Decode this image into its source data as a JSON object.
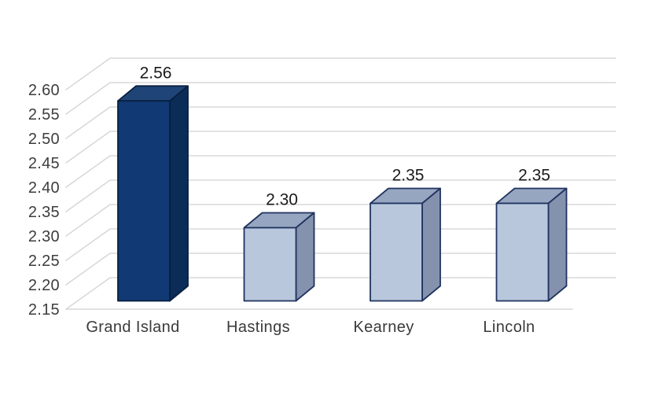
{
  "chart_data": {
    "type": "bar",
    "projection": "3d-clustered-column",
    "title": "",
    "xlabel": "",
    "ylabel": "",
    "categories": [
      "Grand Island",
      "Hastings",
      "Kearney",
      "Lincoln"
    ],
    "values": [
      2.56,
      2.3,
      2.35,
      2.35
    ],
    "data_labels": [
      "2.56",
      "2.30",
      "2.35",
      "2.35"
    ],
    "ylim": [
      2.15,
      2.6
    ],
    "ytick_step": 0.05,
    "ytick_labels": [
      "2.60",
      "2.55",
      "2.50",
      "2.45",
      "2.40",
      "2.35",
      "2.30",
      "2.25",
      "2.20",
      "2.15"
    ],
    "ytick_values": [
      2.6,
      2.55,
      2.5,
      2.45,
      2.4,
      2.35,
      2.3,
      2.25,
      2.2,
      2.15
    ],
    "grid": true,
    "legend": "none",
    "background_color": "#ffffff",
    "grid_color": "#d8d8d8",
    "axis_text_color": "#3d3d3d",
    "data_label_color": "#1a1a1a",
    "series_colors": {
      "highlight_bar": {
        "front": "#113a74",
        "top": "#1f4577",
        "side": "#0b2c57",
        "stroke": "#081f40"
      },
      "default_bar": {
        "front": "#b9c7dc",
        "top": "#96a6c0",
        "side": "#8492ae",
        "stroke": "#20335f"
      }
    },
    "bar_color_keys": [
      "highlight_bar",
      "default_bar",
      "default_bar",
      "default_bar"
    ]
  }
}
